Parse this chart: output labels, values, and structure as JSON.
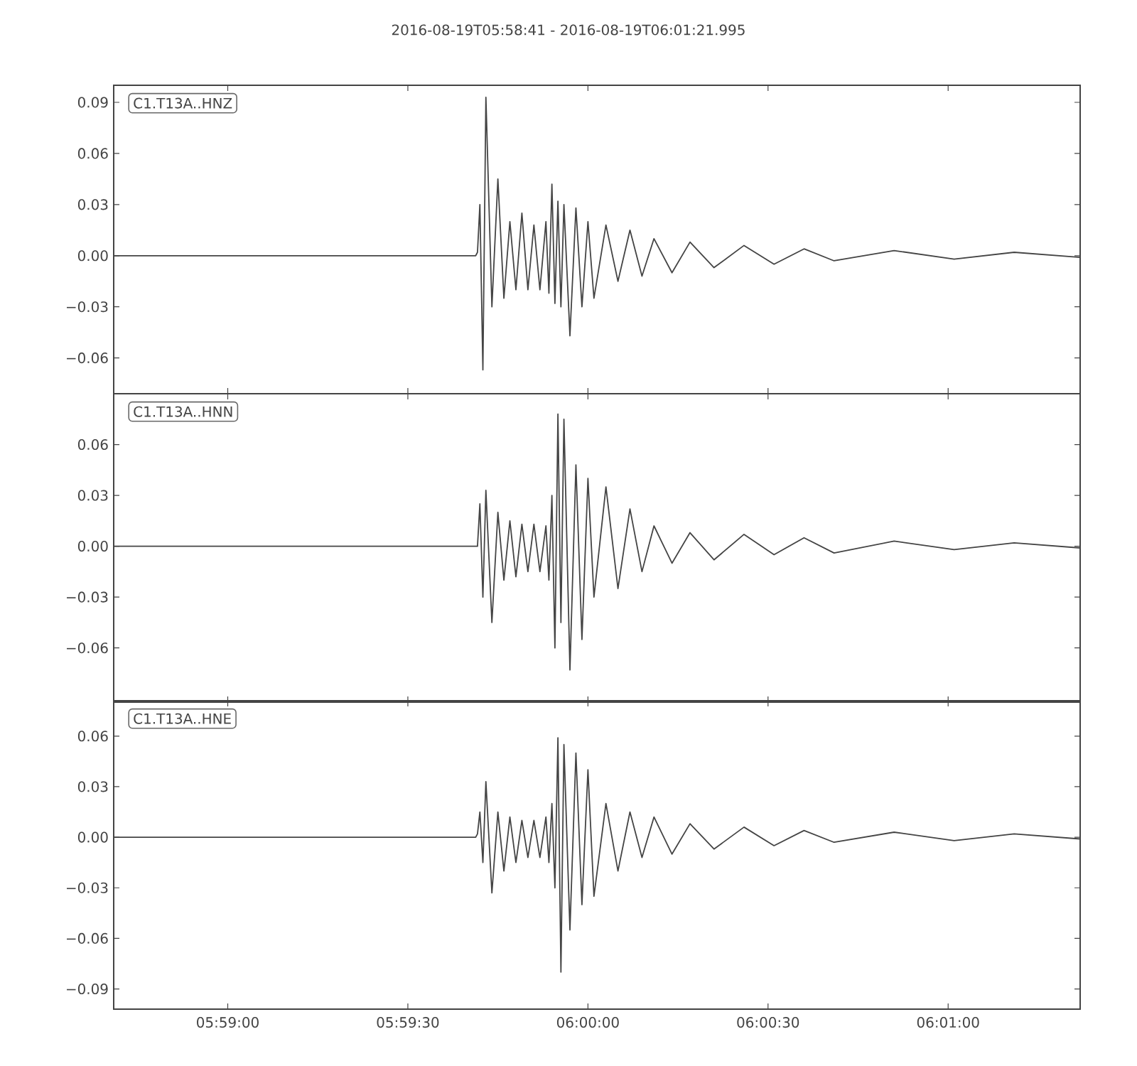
{
  "chart_data": [
    {
      "type": "line",
      "title": "2016-08-19T05:58:41  -  2016-08-19T06:01:21.995",
      "annotations": [
        "C1.T13A..HNZ"
      ],
      "x": [
        5.978056,
        5.980833,
        5.983611,
        5.986389,
        5.989167,
        5.991944,
        5.994583,
        5.994722,
        5.994806,
        5.994889,
        5.995,
        5.995139,
        5.995278,
        5.995556,
        5.995833,
        5.996111,
        5.996389,
        5.996667,
        5.996944,
        5.997222,
        5.9975,
        5.997778,
        5.998056,
        5.998194,
        5.998333,
        5.998472,
        5.998611,
        5.99875,
        5.998889,
        5.999167,
        5.999444,
        5.999722,
        6.0,
        6.000278,
        6.000833,
        6.001389,
        6.001944,
        6.0025,
        6.003056,
        6.003889,
        6.004722,
        6.005833,
        6.007222,
        6.008611,
        6.01,
        6.011389,
        6.014167,
        6.016944,
        6.019722,
        6.022776
      ],
      "series": [
        {
          "color": "#444444",
          "values": [
            0,
            0,
            0,
            0,
            0,
            0,
            0,
            0,
            0,
            0.002,
            0.03,
            -0.067,
            0.093,
            -0.03,
            0.045,
            -0.025,
            0.02,
            -0.02,
            0.025,
            -0.02,
            0.018,
            -0.02,
            0.02,
            -0.022,
            0.042,
            -0.028,
            0.032,
            -0.03,
            0.03,
            -0.047,
            0.028,
            -0.03,
            0.02,
            -0.025,
            0.018,
            -0.015,
            0.015,
            -0.012,
            0.01,
            -0.01,
            0.008,
            -0.007,
            0.006,
            -0.005,
            0.004,
            -0.003,
            0.003,
            -0.002,
            0.002,
            -0.001
          ]
        }
      ],
      "xlim": [
        5.978056,
        6.022776
      ],
      "ylim": [
        -0.081,
        0.1
      ],
      "tick_labels": "y",
      "xticks": [
        {
          "value": 5.983333,
          "label": null
        },
        {
          "value": 5.991667,
          "label": null
        },
        {
          "value": 6.0,
          "label": null
        },
        {
          "value": 6.008333,
          "label": null
        },
        {
          "value": 6.016667,
          "label": null
        }
      ],
      "yticks": [
        {
          "value": -0.06,
          "label": "−0.06"
        },
        {
          "value": -0.03,
          "label": "−0.03"
        },
        {
          "value": 0,
          "label": "0.00"
        },
        {
          "value": 0.03,
          "label": "0.03"
        },
        {
          "value": 0.06,
          "label": "0.06"
        },
        {
          "value": 0.09,
          "label": "0.09"
        }
      ]
    },
    {
      "type": "line",
      "annotations": [
        "C1.T13A..HNN"
      ],
      "x": [
        5.978056,
        5.980833,
        5.983611,
        5.986389,
        5.989167,
        5.991944,
        5.994583,
        5.994722,
        5.994806,
        5.994889,
        5.995,
        5.995139,
        5.995278,
        5.995556,
        5.995833,
        5.996111,
        5.996389,
        5.996667,
        5.996944,
        5.997222,
        5.9975,
        5.997778,
        5.998056,
        5.998194,
        5.998333,
        5.998472,
        5.998611,
        5.99875,
        5.998889,
        5.999167,
        5.999444,
        5.999722,
        6.0,
        6.000278,
        6.000833,
        6.001389,
        6.001944,
        6.0025,
        6.003056,
        6.003889,
        6.004722,
        6.005833,
        6.007222,
        6.008611,
        6.01,
        6.011389,
        6.014167,
        6.016944,
        6.019722,
        6.022776
      ],
      "series": [
        {
          "color": "#444444",
          "values": [
            0,
            0,
            0,
            0,
            0,
            0,
            0,
            0,
            0,
            0,
            0.025,
            -0.03,
            0.033,
            -0.045,
            0.02,
            -0.02,
            0.015,
            -0.018,
            0.013,
            -0.015,
            0.013,
            -0.015,
            0.012,
            -0.02,
            0.03,
            -0.06,
            0.078,
            -0.045,
            0.075,
            -0.073,
            0.048,
            -0.055,
            0.04,
            -0.03,
            0.035,
            -0.025,
            0.022,
            -0.015,
            0.012,
            -0.01,
            0.008,
            -0.008,
            0.007,
            -0.005,
            0.005,
            -0.004,
            0.003,
            -0.002,
            0.002,
            -0.001
          ]
        }
      ],
      "xlim": [
        5.978056,
        6.022776
      ],
      "ylim": [
        -0.092,
        0.09
      ],
      "tick_labels": "y",
      "xticks": [
        {
          "value": 5.983333,
          "label": null
        },
        {
          "value": 5.991667,
          "label": null
        },
        {
          "value": 6.0,
          "label": null
        },
        {
          "value": 6.008333,
          "label": null
        },
        {
          "value": 6.016667,
          "label": null
        }
      ],
      "yticks": [
        {
          "value": -0.06,
          "label": "−0.06"
        },
        {
          "value": -0.03,
          "label": "−0.03"
        },
        {
          "value": 0,
          "label": "0.00"
        },
        {
          "value": 0.03,
          "label": "0.03"
        },
        {
          "value": 0.06,
          "label": "0.06"
        }
      ]
    },
    {
      "type": "line",
      "annotations": [
        "C1.T13A..HNE"
      ],
      "x": [
        5.978056,
        5.980833,
        5.983611,
        5.986389,
        5.989167,
        5.991944,
        5.994583,
        5.994722,
        5.994806,
        5.994889,
        5.995,
        5.995139,
        5.995278,
        5.995556,
        5.995833,
        5.996111,
        5.996389,
        5.996667,
        5.996944,
        5.997222,
        5.9975,
        5.997778,
        5.998056,
        5.998194,
        5.998333,
        5.998472,
        5.998611,
        5.99875,
        5.998889,
        5.999167,
        5.999444,
        5.999722,
        6.0,
        6.000278,
        6.000833,
        6.001389,
        6.001944,
        6.0025,
        6.003056,
        6.003889,
        6.004722,
        6.005833,
        6.007222,
        6.008611,
        6.01,
        6.011389,
        6.014167,
        6.016944,
        6.019722,
        6.022776
      ],
      "series": [
        {
          "color": "#444444",
          "values": [
            0,
            0,
            0,
            0,
            0,
            0,
            0,
            0,
            0,
            0.002,
            0.015,
            -0.015,
            0.033,
            -0.033,
            0.015,
            -0.02,
            0.012,
            -0.015,
            0.01,
            -0.012,
            0.01,
            -0.012,
            0.012,
            -0.015,
            0.02,
            -0.03,
            0.059,
            -0.08,
            0.055,
            -0.055,
            0.05,
            -0.04,
            0.04,
            -0.035,
            0.02,
            -0.02,
            0.015,
            -0.012,
            0.012,
            -0.01,
            0.008,
            -0.007,
            0.006,
            -0.005,
            0.004,
            -0.003,
            0.003,
            -0.002,
            0.002,
            -0.001
          ]
        }
      ],
      "xlim": [
        5.978056,
        6.022776
      ],
      "ylim": [
        -0.102,
        0.081
      ],
      "xticks": [
        {
          "value": 5.983333,
          "label": "05:59:00"
        },
        {
          "value": 5.991667,
          "label": "05:59:30"
        },
        {
          "value": 6.0,
          "label": "06:00:00"
        },
        {
          "value": 6.008333,
          "label": "06:00:30"
        },
        {
          "value": 6.016667,
          "label": "06:01:00"
        }
      ],
      "yticks": [
        {
          "value": -0.09,
          "label": "−0.09"
        },
        {
          "value": -0.06,
          "label": "−0.06"
        },
        {
          "value": -0.03,
          "label": "−0.03"
        },
        {
          "value": 0,
          "label": "0.00"
        },
        {
          "value": 0.03,
          "label": "0.03"
        },
        {
          "value": 0.06,
          "label": "0.06"
        }
      ]
    }
  ]
}
